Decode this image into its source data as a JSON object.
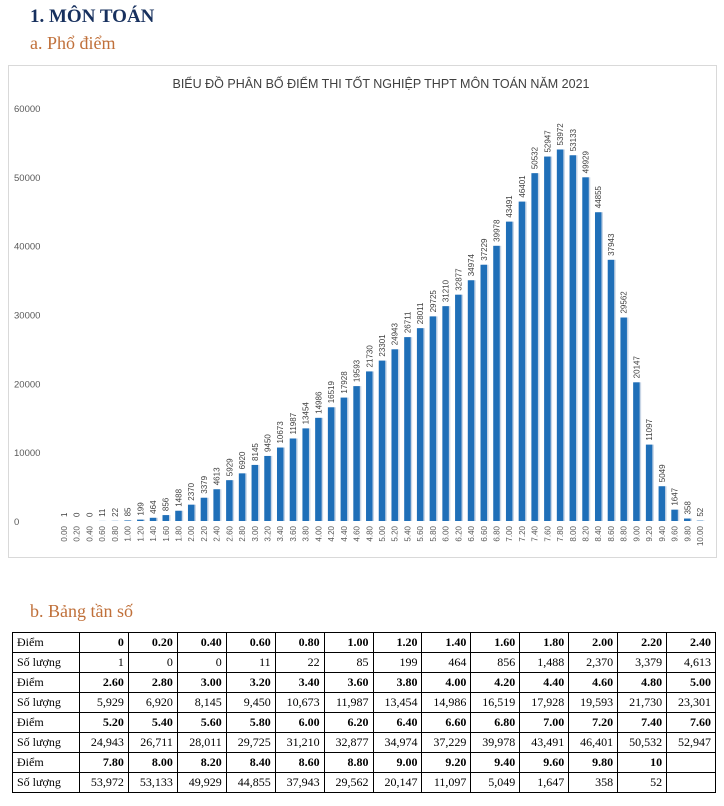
{
  "heading": "1.  MÔN TOÁN",
  "section_a": "a.  Phổ điểm",
  "section_b": "b.  Bảng tần số",
  "chart_data": {
    "type": "bar",
    "title": "BIỂU ĐỒ PHÂN BỐ ĐIỂM THI TỐT NGHIỆP THPT MÔN TOÁN NĂM 2021",
    "categories": [
      "0.00",
      "0.20",
      "0.40",
      "0.60",
      "0.80",
      "1.00",
      "1.20",
      "1.40",
      "1.60",
      "1.80",
      "2.00",
      "2.20",
      "2.40",
      "2.60",
      "2.80",
      "3.00",
      "3.20",
      "3.40",
      "3.60",
      "3.80",
      "4.00",
      "4.20",
      "4.40",
      "4.60",
      "4.80",
      "5.00",
      "5.20",
      "5.40",
      "5.60",
      "5.80",
      "6.00",
      "6.20",
      "6.40",
      "6.60",
      "6.80",
      "7.00",
      "7.20",
      "7.40",
      "7.60",
      "7.80",
      "8.00",
      "8.20",
      "8.40",
      "8.60",
      "8.80",
      "9.00",
      "9.20",
      "9.40",
      "9.60",
      "9.80",
      "10.00"
    ],
    "values": [
      1,
      0,
      0,
      11,
      22,
      85,
      199,
      464,
      856,
      1488,
      2370,
      3379,
      4613,
      5929,
      6920,
      8145,
      9450,
      10673,
      11987,
      13454,
      14986,
      16519,
      17928,
      19593,
      21730,
      23301,
      24943,
      26711,
      28011,
      29725,
      31210,
      32877,
      34974,
      37229,
      39978,
      43491,
      46401,
      50532,
      52947,
      53972,
      53133,
      49929,
      44855,
      37943,
      29562,
      20147,
      11097,
      5049,
      1647,
      358,
      52
    ],
    "yticks": [
      "0",
      "10000",
      "20000",
      "30000",
      "40000",
      "50000",
      "60000"
    ],
    "ylim": [
      0,
      60000
    ],
    "grid": false,
    "bar_color": "#1f6fb8"
  },
  "table": {
    "score_label": "Điểm",
    "count_label": "Số lượng",
    "rows": [
      {
        "scores": [
          "0",
          "0.20",
          "0.40",
          "0.60",
          "0.80",
          "1.00",
          "1.20",
          "1.40",
          "1.60",
          "1.80",
          "2.00",
          "2.20",
          "2.40"
        ],
        "counts": [
          "1",
          "0",
          "0",
          "11",
          "22",
          "85",
          "199",
          "464",
          "856",
          "1,488",
          "2,370",
          "3,379",
          "4,613"
        ]
      },
      {
        "scores": [
          "2.60",
          "2.80",
          "3.00",
          "3.20",
          "3.40",
          "3.60",
          "3.80",
          "4.00",
          "4.20",
          "4.40",
          "4.60",
          "4.80",
          "5.00"
        ],
        "counts": [
          "5,929",
          "6,920",
          "8,145",
          "9,450",
          "10,673",
          "11,987",
          "13,454",
          "14,986",
          "16,519",
          "17,928",
          "19,593",
          "21,730",
          "23,301"
        ]
      },
      {
        "scores": [
          "5.20",
          "5.40",
          "5.60",
          "5.80",
          "6.00",
          "6.20",
          "6.40",
          "6.60",
          "6.80",
          "7.00",
          "7.20",
          "7.40",
          "7.60"
        ],
        "counts": [
          "24,943",
          "26,711",
          "28,011",
          "29,725",
          "31,210",
          "32,877",
          "34,974",
          "37,229",
          "39,978",
          "43,491",
          "46,401",
          "50,532",
          "52,947"
        ]
      },
      {
        "scores": [
          "7.80",
          "8.00",
          "8.20",
          "8.40",
          "8.60",
          "8.80",
          "9.00",
          "9.20",
          "9.40",
          "9.60",
          "9.80",
          "10",
          ""
        ],
        "counts": [
          "53,972",
          "53,133",
          "49,929",
          "44,855",
          "37,943",
          "29,562",
          "20,147",
          "11,097",
          "5,049",
          "1,647",
          "358",
          "52",
          ""
        ]
      }
    ]
  }
}
